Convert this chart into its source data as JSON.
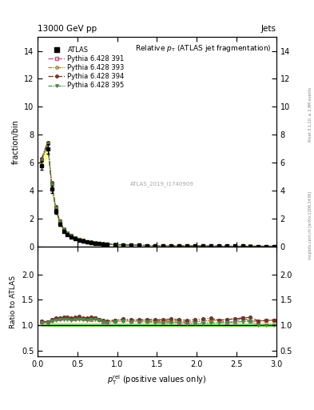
{
  "title": "Relative $p_{\\rm T}$ (ATLAS jet fragmentation)",
  "header_left": "13000 GeV pp",
  "header_right": "Jets",
  "ylabel_main": "fraction/bin",
  "ylabel_ratio": "Ratio to ATLAS",
  "xlabel": "$p_{\\rm T}^{\\rm rel}$ (positive values only)",
  "watermark": "ATLAS_2019_I1740909",
  "right_label": "mcplots.cern.ch [arXiv:1306.3436]",
  "right_label2": "Rivet 3.1.10, ≥ 2.9M events",
  "xlim": [
    0,
    3.0
  ],
  "ylim_main": [
    0,
    15
  ],
  "ylim_ratio": [
    0.38,
    2.55
  ],
  "yticks_main": [
    0,
    2,
    4,
    6,
    8,
    10,
    12,
    14
  ],
  "yticks_ratio": [
    0.5,
    1.0,
    1.5,
    2.0
  ],
  "atlas_x": [
    0.05,
    0.125,
    0.175,
    0.225,
    0.275,
    0.325,
    0.375,
    0.425,
    0.475,
    0.525,
    0.575,
    0.625,
    0.675,
    0.725,
    0.775,
    0.825,
    0.875,
    0.975,
    1.075,
    1.175,
    1.275,
    1.375,
    1.475,
    1.575,
    1.675,
    1.775,
    1.875,
    1.975,
    2.075,
    2.175,
    2.275,
    2.375,
    2.475,
    2.575,
    2.675,
    2.775,
    2.875,
    2.975
  ],
  "atlas_y": [
    5.8,
    7.0,
    4.1,
    2.5,
    1.6,
    1.1,
    0.85,
    0.68,
    0.55,
    0.44,
    0.37,
    0.31,
    0.26,
    0.22,
    0.19,
    0.17,
    0.15,
    0.12,
    0.1,
    0.085,
    0.072,
    0.062,
    0.054,
    0.047,
    0.041,
    0.036,
    0.032,
    0.028,
    0.025,
    0.022,
    0.02,
    0.018,
    0.016,
    0.014,
    0.013,
    0.012,
    0.011,
    0.01
  ],
  "atlas_yerr": [
    0.3,
    0.35,
    0.25,
    0.18,
    0.12,
    0.08,
    0.06,
    0.05,
    0.04,
    0.03,
    0.025,
    0.022,
    0.018,
    0.016,
    0.014,
    0.012,
    0.011,
    0.009,
    0.008,
    0.007,
    0.006,
    0.005,
    0.0045,
    0.004,
    0.0035,
    0.003,
    0.0028,
    0.0025,
    0.0022,
    0.002,
    0.0018,
    0.0016,
    0.0015,
    0.0013,
    0.0012,
    0.0011,
    0.001,
    0.0009
  ],
  "mc_x": [
    0.05,
    0.125,
    0.175,
    0.225,
    0.275,
    0.325,
    0.375,
    0.425,
    0.475,
    0.525,
    0.575,
    0.625,
    0.675,
    0.725,
    0.775,
    0.825,
    0.875,
    0.975,
    1.075,
    1.175,
    1.275,
    1.375,
    1.475,
    1.575,
    1.675,
    1.775,
    1.875,
    1.975,
    2.075,
    2.175,
    2.275,
    2.375,
    2.475,
    2.575,
    2.675,
    2.775,
    2.875,
    2.975
  ],
  "pythia391_y": [
    6.2,
    7.4,
    4.5,
    2.8,
    1.8,
    1.25,
    0.97,
    0.77,
    0.62,
    0.5,
    0.42,
    0.35,
    0.29,
    0.25,
    0.21,
    0.18,
    0.16,
    0.13,
    0.11,
    0.092,
    0.078,
    0.067,
    0.058,
    0.05,
    0.044,
    0.038,
    0.034,
    0.03,
    0.027,
    0.024,
    0.022,
    0.019,
    0.017,
    0.016,
    0.014,
    0.013,
    0.012,
    0.011
  ],
  "pythia393_y": [
    6.25,
    7.42,
    4.52,
    2.82,
    1.82,
    1.26,
    0.98,
    0.77,
    0.63,
    0.51,
    0.42,
    0.35,
    0.3,
    0.25,
    0.21,
    0.185,
    0.162,
    0.131,
    0.111,
    0.093,
    0.079,
    0.068,
    0.059,
    0.051,
    0.045,
    0.039,
    0.034,
    0.03,
    0.027,
    0.024,
    0.022,
    0.02,
    0.018,
    0.016,
    0.014,
    0.013,
    0.012,
    0.011
  ],
  "pythia394_y": [
    6.3,
    7.45,
    4.55,
    2.85,
    1.83,
    1.27,
    0.985,
    0.775,
    0.635,
    0.515,
    0.425,
    0.355,
    0.302,
    0.252,
    0.212,
    0.186,
    0.163,
    0.132,
    0.112,
    0.094,
    0.08,
    0.069,
    0.06,
    0.052,
    0.046,
    0.04,
    0.035,
    0.031,
    0.028,
    0.025,
    0.022,
    0.02,
    0.018,
    0.016,
    0.015,
    0.013,
    0.012,
    0.011
  ],
  "pythia395_y": [
    6.1,
    7.35,
    4.42,
    2.75,
    1.77,
    1.22,
    0.95,
    0.75,
    0.61,
    0.49,
    0.41,
    0.34,
    0.29,
    0.245,
    0.207,
    0.18,
    0.158,
    0.128,
    0.108,
    0.091,
    0.077,
    0.066,
    0.057,
    0.049,
    0.043,
    0.038,
    0.033,
    0.029,
    0.026,
    0.023,
    0.021,
    0.019,
    0.017,
    0.015,
    0.014,
    0.012,
    0.011,
    0.01
  ],
  "colors": {
    "p391": "#c8507a",
    "p393": "#a08030",
    "p394": "#6B3A2A",
    "p395": "#4a8a4a",
    "atlas_fill_yellow": "#ffff80",
    "atlas_fill_green": "#c8e880",
    "ratio_green_band": "#90EE90",
    "ratio_yellow_band": "#FFFF80"
  }
}
